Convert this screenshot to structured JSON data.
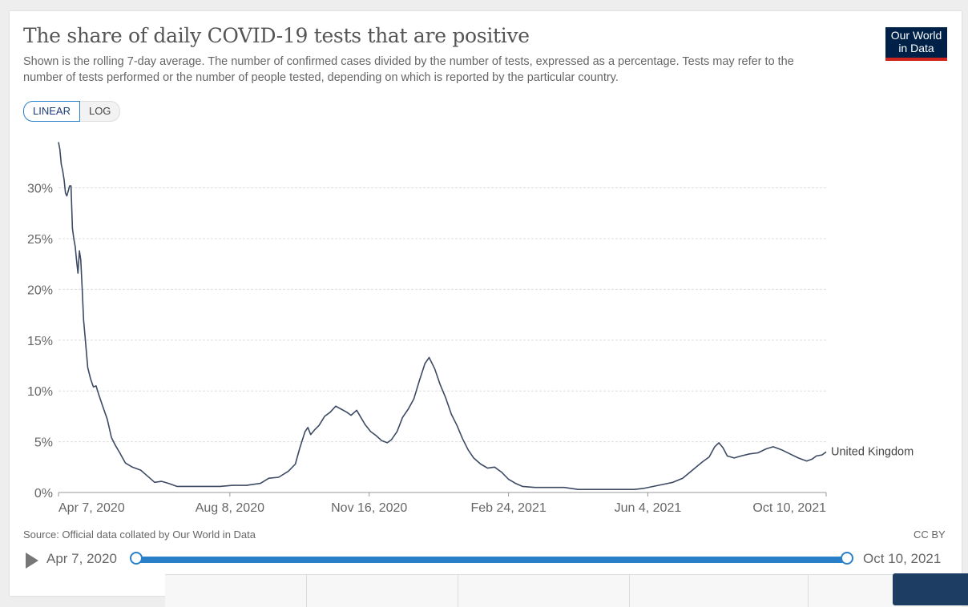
{
  "header": {
    "title": "The share of daily COVID-19 tests that are positive",
    "subtitle": "Shown is the rolling 7-day average. The number of confirmed cases divided by the number of tests, expressed as a percentage. Tests may refer to the number of tests performed or the number of people tested, depending on which is reported by the particular country.",
    "logo_line1": "Our World",
    "logo_line2": "in Data"
  },
  "controls": {
    "linear_label": "LINEAR",
    "log_label": "LOG",
    "selected_scale": "LINEAR"
  },
  "footer": {
    "source": "Source: Official data collated by Our World in Data",
    "license": "CC BY"
  },
  "timeline": {
    "start_label": "Apr 7, 2020",
    "end_label": "Oct 10, 2021"
  },
  "colors": {
    "series": "#3d4a63",
    "accent": "#2a7fc9",
    "logo_bg": "#002147",
    "logo_stripe": "#ce261e"
  },
  "chart_data": {
    "type": "line",
    "title": "The share of daily COVID-19 tests that are positive",
    "xlabel": "",
    "ylabel": "",
    "x_axis_type": "date",
    "xlim": [
      "2020-04-07",
      "2021-10-10"
    ],
    "ylim": [
      0,
      35
    ],
    "yticks": [
      0,
      5,
      10,
      15,
      20,
      25,
      30
    ],
    "ytick_labels": [
      "0%",
      "5%",
      "10%",
      "15%",
      "20%",
      "25%",
      "30%"
    ],
    "xticks": [
      "2020-04-07",
      "2020-08-08",
      "2020-11-16",
      "2021-02-24",
      "2021-06-04",
      "2021-10-10"
    ],
    "xtick_labels": [
      "Apr 7, 2020",
      "Aug 8, 2020",
      "Nov 16, 2020",
      "Feb 24, 2021",
      "Jun 4, 2021",
      "Oct 10, 2021"
    ],
    "grid": "horizontal-dashed",
    "series": [
      {
        "name": "United Kingdom",
        "points": [
          [
            "2020-04-07",
            34.5
          ],
          [
            "2020-04-08",
            33.8
          ],
          [
            "2020-04-09",
            32.3
          ],
          [
            "2020-04-10",
            31.7
          ],
          [
            "2020-04-11",
            30.8
          ],
          [
            "2020-04-12",
            29.5
          ],
          [
            "2020-04-13",
            29.2
          ],
          [
            "2020-04-14",
            29.7
          ],
          [
            "2020-04-15",
            30.2
          ],
          [
            "2020-04-16",
            30.2
          ],
          [
            "2020-04-17",
            26.0
          ],
          [
            "2020-04-18",
            25.0
          ],
          [
            "2020-04-19",
            24.2
          ],
          [
            "2020-04-20",
            22.8
          ],
          [
            "2020-04-21",
            21.6
          ],
          [
            "2020-04-22",
            23.8
          ],
          [
            "2020-04-23",
            22.9
          ],
          [
            "2020-04-24",
            20.0
          ],
          [
            "2020-04-25",
            17.0
          ],
          [
            "2020-04-26",
            15.5
          ],
          [
            "2020-04-28",
            12.3
          ],
          [
            "2020-04-30",
            11.2
          ],
          [
            "2020-05-02",
            10.4
          ],
          [
            "2020-05-04",
            10.5
          ],
          [
            "2020-05-06",
            9.6
          ],
          [
            "2020-05-09",
            8.4
          ],
          [
            "2020-05-12",
            7.2
          ],
          [
            "2020-05-15",
            5.4
          ],
          [
            "2020-05-18",
            4.6
          ],
          [
            "2020-05-21",
            3.9
          ],
          [
            "2020-05-25",
            2.9
          ],
          [
            "2020-05-30",
            2.5
          ],
          [
            "2020-06-05",
            2.2
          ],
          [
            "2020-06-10",
            1.6
          ],
          [
            "2020-06-15",
            1.0
          ],
          [
            "2020-06-20",
            1.1
          ],
          [
            "2020-06-25",
            0.9
          ],
          [
            "2020-07-01",
            0.6
          ],
          [
            "2020-07-10",
            0.6
          ],
          [
            "2020-07-20",
            0.6
          ],
          [
            "2020-08-01",
            0.6
          ],
          [
            "2020-08-10",
            0.7
          ],
          [
            "2020-08-20",
            0.7
          ],
          [
            "2020-08-30",
            0.9
          ],
          [
            "2020-09-05",
            1.4
          ],
          [
            "2020-09-12",
            1.5
          ],
          [
            "2020-09-19",
            2.1
          ],
          [
            "2020-09-24",
            2.8
          ],
          [
            "2020-09-27",
            4.3
          ],
          [
            "2020-10-01",
            6.0
          ],
          [
            "2020-10-03",
            6.4
          ],
          [
            "2020-10-05",
            5.7
          ],
          [
            "2020-10-08",
            6.2
          ],
          [
            "2020-10-11",
            6.6
          ],
          [
            "2020-10-15",
            7.5
          ],
          [
            "2020-10-19",
            7.9
          ],
          [
            "2020-10-23",
            8.5
          ],
          [
            "2020-10-27",
            8.2
          ],
          [
            "2020-10-31",
            7.9
          ],
          [
            "2020-11-03",
            7.6
          ],
          [
            "2020-11-07",
            8.1
          ],
          [
            "2020-11-10",
            7.4
          ],
          [
            "2020-11-13",
            6.7
          ],
          [
            "2020-11-17",
            6.0
          ],
          [
            "2020-11-21",
            5.6
          ],
          [
            "2020-11-25",
            5.1
          ],
          [
            "2020-11-29",
            4.9
          ],
          [
            "2020-12-02",
            5.2
          ],
          [
            "2020-12-06",
            6.0
          ],
          [
            "2020-12-10",
            7.4
          ],
          [
            "2020-12-14",
            8.2
          ],
          [
            "2020-12-18",
            9.2
          ],
          [
            "2020-12-22",
            11.0
          ],
          [
            "2020-12-26",
            12.7
          ],
          [
            "2020-12-29",
            13.3
          ],
          [
            "2021-01-02",
            12.2
          ],
          [
            "2021-01-06",
            10.6
          ],
          [
            "2021-01-10",
            9.3
          ],
          [
            "2021-01-14",
            7.7
          ],
          [
            "2021-01-18",
            6.6
          ],
          [
            "2021-01-22",
            5.3
          ],
          [
            "2021-01-26",
            4.2
          ],
          [
            "2021-01-30",
            3.4
          ],
          [
            "2021-02-04",
            2.8
          ],
          [
            "2021-02-09",
            2.4
          ],
          [
            "2021-02-14",
            2.5
          ],
          [
            "2021-02-19",
            2.0
          ],
          [
            "2021-02-24",
            1.3
          ],
          [
            "2021-03-01",
            0.9
          ],
          [
            "2021-03-06",
            0.6
          ],
          [
            "2021-03-15",
            0.5
          ],
          [
            "2021-03-25",
            0.5
          ],
          [
            "2021-04-05",
            0.5
          ],
          [
            "2021-04-15",
            0.3
          ],
          [
            "2021-04-25",
            0.3
          ],
          [
            "2021-05-05",
            0.3
          ],
          [
            "2021-05-15",
            0.3
          ],
          [
            "2021-05-25",
            0.3
          ],
          [
            "2021-06-01",
            0.4
          ],
          [
            "2021-06-08",
            0.6
          ],
          [
            "2021-06-15",
            0.8
          ],
          [
            "2021-06-22",
            1.0
          ],
          [
            "2021-06-29",
            1.4
          ],
          [
            "2021-07-06",
            2.2
          ],
          [
            "2021-07-13",
            3.0
          ],
          [
            "2021-07-18",
            3.5
          ],
          [
            "2021-07-22",
            4.5
          ],
          [
            "2021-07-25",
            4.9
          ],
          [
            "2021-07-28",
            4.4
          ],
          [
            "2021-07-31",
            3.6
          ],
          [
            "2021-08-05",
            3.4
          ],
          [
            "2021-08-10",
            3.6
          ],
          [
            "2021-08-16",
            3.8
          ],
          [
            "2021-08-22",
            3.9
          ],
          [
            "2021-08-28",
            4.3
          ],
          [
            "2021-09-02",
            4.5
          ],
          [
            "2021-09-08",
            4.2
          ],
          [
            "2021-09-14",
            3.8
          ],
          [
            "2021-09-20",
            3.4
          ],
          [
            "2021-09-26",
            3.1
          ],
          [
            "2021-09-30",
            3.3
          ],
          [
            "2021-10-03",
            3.6
          ],
          [
            "2021-10-07",
            3.7
          ],
          [
            "2021-10-10",
            4.0
          ]
        ]
      }
    ]
  }
}
